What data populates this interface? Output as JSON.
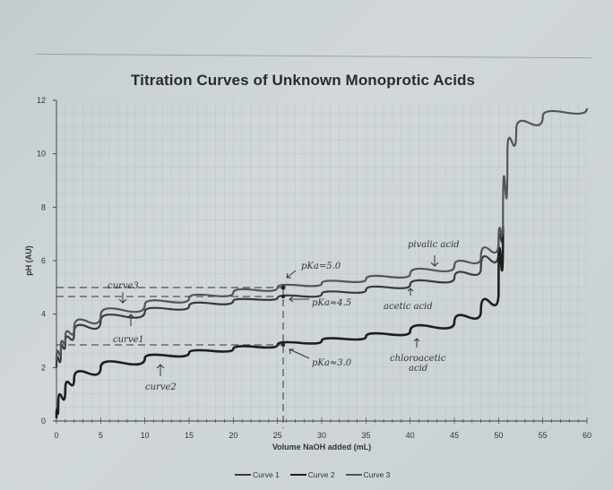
{
  "chart_data": {
    "type": "line",
    "title": "Titration Curves of Unknown Monoprotic Acids",
    "xlabel": "Volume NaOH added (mL)",
    "ylabel": "pH (AU)",
    "xlim": [
      0,
      60
    ],
    "ylim": [
      0,
      12
    ],
    "x_ticks": [
      0,
      5,
      10,
      15,
      20,
      25,
      30,
      35,
      40,
      45,
      50,
      55,
      60
    ],
    "y_ticks": [
      0,
      2,
      4,
      6,
      8,
      10,
      12
    ],
    "grid": true,
    "legend_position": "bottom",
    "series": [
      {
        "name": "Curve 1",
        "color": "#3a3a3a",
        "x": [
          0,
          0.5,
          1,
          2,
          5,
          10,
          15,
          20,
          25,
          30,
          35,
          40,
          45,
          48,
          50,
          50.5
        ],
        "y": [
          2.0,
          2.6,
          2.9,
          3.3,
          3.75,
          4.1,
          4.3,
          4.5,
          4.6,
          4.75,
          4.9,
          5.1,
          5.35,
          5.7,
          6.4,
          7.3
        ]
      },
      {
        "name": "Curve 2",
        "color": "#1e1e1e",
        "x": [
          0,
          0.2,
          1,
          2,
          5,
          10,
          15,
          20,
          25,
          30,
          35,
          40,
          45,
          48,
          50,
          50.5
        ],
        "y": [
          0.1,
          0.6,
          1.2,
          1.6,
          2.0,
          2.35,
          2.55,
          2.7,
          2.85,
          3.0,
          3.15,
          3.35,
          3.7,
          4.1,
          4.8,
          7.3
        ]
      },
      {
        "name": "Curve 3",
        "color": "#555555",
        "x": [
          0,
          0.5,
          1,
          2,
          5,
          10,
          15,
          20,
          25,
          30,
          35,
          40,
          45,
          48,
          50,
          50.5,
          51,
          52,
          55,
          60
        ],
        "y": [
          2.3,
          2.8,
          3.1,
          3.5,
          3.95,
          4.35,
          4.6,
          4.8,
          5.0,
          5.15,
          5.3,
          5.5,
          5.8,
          6.1,
          6.7,
          7.5,
          10.0,
          10.9,
          11.4,
          11.7
        ]
      }
    ],
    "annotations": [
      {
        "text": "pKa = 5.0",
        "x": 25,
        "y": 5.0
      },
      {
        "text": "pKa ≈ 4.5",
        "x": 25,
        "y": 4.65
      },
      {
        "text": "pKa ≈ 3.0",
        "x": 25,
        "y": 2.85
      },
      {
        "text": "curve 3",
        "note": "arrow to curve 3"
      },
      {
        "text": "curve 1",
        "note": "arrow to curve 1"
      },
      {
        "text": "curve 2",
        "note": "arrow to curve 2"
      },
      {
        "text": "pivalic acid",
        "note": "arrow to curve 3"
      },
      {
        "text": "acetic acid",
        "note": "arrow to curve 1"
      },
      {
        "text": "chloroacetic acid",
        "note": "arrow to curve 2"
      }
    ],
    "reference_lines": {
      "vertical_dashed_x": 25,
      "horizontal_dashed_y": [
        5.0,
        4.65,
        2.85
      ]
    }
  },
  "labels": {
    "title": "Titration Curves of Unknown Monoprotic Acids",
    "xlabel": "Volume NaOH added (mL)",
    "ylabel": "pH (AU)",
    "legend": [
      "Curve 1",
      "Curve 2",
      "Curve 3"
    ],
    "hand": {
      "curve3": "curve3",
      "curve1": "curve1",
      "curve2": "curve2",
      "pka5": "pKa=5.0",
      "pka45": "pKa≈4.5",
      "pka3": "pKa≈3.0",
      "pivalic": "pivalic acid",
      "acetic": "acetic acid",
      "chloro1": "chloroacetic",
      "chloro2": "acid"
    }
  }
}
